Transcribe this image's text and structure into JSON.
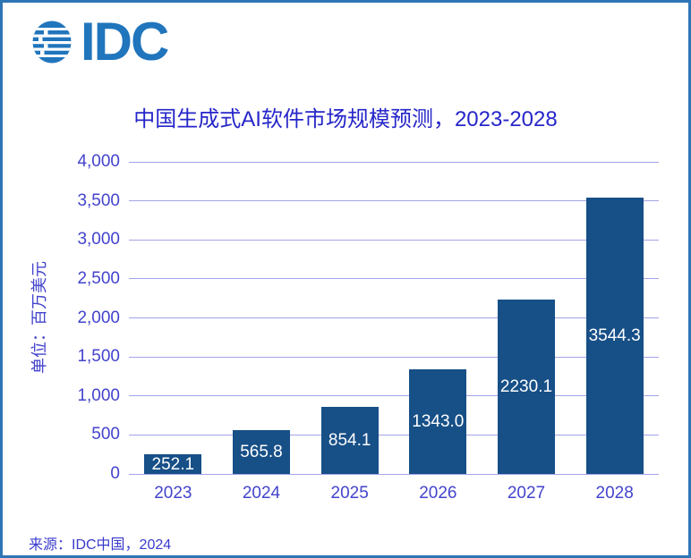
{
  "frame": {
    "border_color": "#2e75b6",
    "background": "#ffffff"
  },
  "logo": {
    "text": "IDC",
    "color": "#2175bc",
    "globe_icon": "idc-globe-stripes"
  },
  "source": "来源：IDC中国，2024",
  "chart_data": {
    "type": "bar",
    "title": "中国生成式AI软件市场规模预测，2023-2028",
    "categories": [
      "2023",
      "2024",
      "2025",
      "2026",
      "2027",
      "2028"
    ],
    "values": [
      252.1,
      565.8,
      854.1,
      1343.0,
      2230.1,
      3544.3
    ],
    "value_labels": [
      "252.1",
      "565.8",
      "854.1",
      "1343.0",
      "2230.1",
      "3544.3"
    ],
    "xlabel": "",
    "ylabel": "单位：百万美元",
    "ylim": [
      0,
      4000
    ],
    "ytick_step": 500,
    "ytick_labels": [
      "0",
      "500",
      "1,000",
      "1,500",
      "2,000",
      "2,500",
      "3,000",
      "3,500",
      "4,000"
    ],
    "grid": true,
    "legend": "none",
    "bar_color": "#174f87",
    "gridline_color": "#a3a3e8",
    "axis_label_color": "#4343cd",
    "title_color": "#2626c9",
    "value_label_color": "#ffffff"
  }
}
